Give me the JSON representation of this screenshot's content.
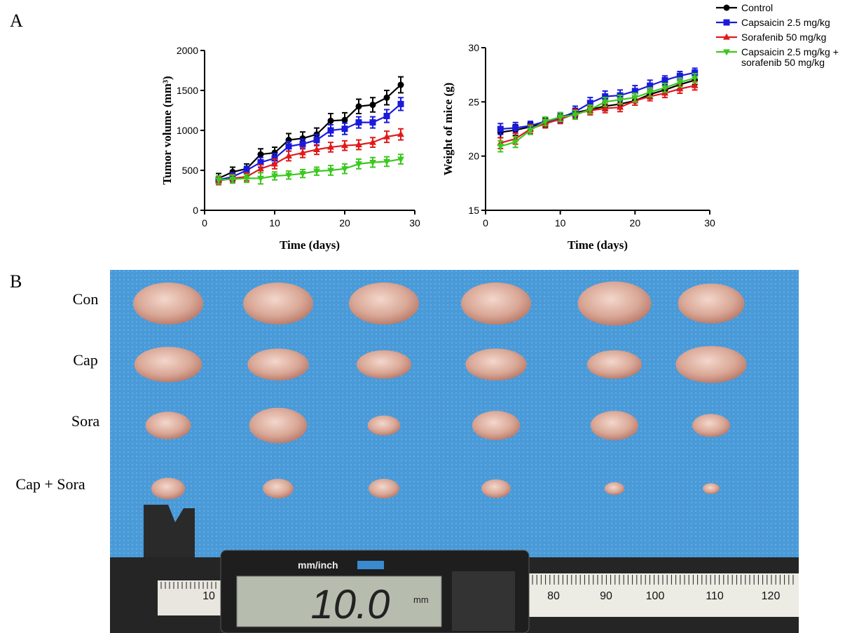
{
  "panels": {
    "a": "A",
    "b": "B"
  },
  "chart_data": [
    {
      "type": "line",
      "ylabel": "Tumor volume (mm³)",
      "xlabel": "Time (days)",
      "x": [
        2,
        4,
        6,
        8,
        10,
        12,
        14,
        16,
        18,
        20,
        22,
        24,
        26,
        28
      ],
      "xlim": [
        0,
        30
      ],
      "xticks": [
        0,
        10,
        20,
        30
      ],
      "ylim": [
        0,
        2000
      ],
      "yticks": [
        0,
        500,
        1000,
        1500,
        2000
      ],
      "series": [
        {
          "name": "Control",
          "color": "#000000",
          "marker": "circle",
          "values": [
            400,
            480,
            520,
            700,
            720,
            880,
            900,
            950,
            1120,
            1130,
            1300,
            1320,
            1410,
            1570
          ],
          "errors": [
            60,
            60,
            60,
            70,
            70,
            80,
            80,
            80,
            90,
            90,
            90,
            90,
            90,
            100
          ]
        },
        {
          "name": "Capsaicin 2.5 mg/kg",
          "color": "#1a1adc",
          "marker": "square",
          "values": [
            380,
            420,
            500,
            600,
            650,
            800,
            830,
            880,
            1000,
            1020,
            1100,
            1100,
            1180,
            1330
          ],
          "errors": [
            50,
            50,
            50,
            60,
            60,
            60,
            60,
            70,
            70,
            70,
            70,
            70,
            80,
            80
          ]
        },
        {
          "name": "Sorafenib 50 mg/kg",
          "color": "#e01a1a",
          "marker": "triangle-up",
          "values": [
            370,
            400,
            420,
            520,
            580,
            680,
            720,
            760,
            790,
            810,
            820,
            850,
            920,
            950
          ],
          "errors": [
            50,
            50,
            50,
            50,
            60,
            60,
            60,
            60,
            60,
            60,
            60,
            60,
            70,
            70
          ]
        },
        {
          "name": "Capsaicin 2.5 mg/kg + sorafenib 50 mg/kg",
          "color": "#3cc81e",
          "marker": "triangle-down",
          "values": [
            380,
            390,
            400,
            400,
            430,
            440,
            460,
            490,
            500,
            520,
            580,
            600,
            610,
            640
          ],
          "errors": [
            50,
            50,
            50,
            70,
            50,
            50,
            50,
            50,
            60,
            60,
            60,
            60,
            60,
            60
          ]
        }
      ]
    },
    {
      "type": "line",
      "ylabel": "Weight of mice (g)",
      "xlabel": "Time (days)",
      "x": [
        2,
        4,
        6,
        8,
        10,
        12,
        14,
        16,
        18,
        20,
        22,
        24,
        26,
        28
      ],
      "xlim": [
        0,
        30
      ],
      "xticks": [
        0,
        10,
        20,
        30
      ],
      "ylim": [
        15,
        30
      ],
      "yticks": [
        15,
        20,
        25,
        30
      ],
      "series": [
        {
          "color": "#000000",
          "marker": "circle",
          "values": [
            22.2,
            22.4,
            22.7,
            23.1,
            23.6,
            24.0,
            24.3,
            24.6,
            24.8,
            25.1,
            25.7,
            26.1,
            26.6,
            27.0
          ],
          "errors": [
            0.5,
            0.5,
            0.4,
            0.4,
            0.4,
            0.4,
            0.4,
            0.4,
            0.4,
            0.4,
            0.4,
            0.4,
            0.4,
            0.4
          ]
        },
        {
          "color": "#1a1adc",
          "marker": "square",
          "values": [
            22.5,
            22.6,
            22.8,
            23.2,
            23.5,
            24.1,
            24.9,
            25.5,
            25.6,
            26.0,
            26.5,
            27.0,
            27.4,
            27.7
          ],
          "errors": [
            0.5,
            0.5,
            0.4,
            0.4,
            0.4,
            0.5,
            0.5,
            0.5,
            0.5,
            0.5,
            0.5,
            0.4,
            0.4,
            0.4
          ]
        },
        {
          "color": "#e01a1a",
          "marker": "triangle-up",
          "values": [
            21.2,
            21.6,
            22.5,
            23.0,
            23.4,
            23.9,
            24.2,
            24.4,
            24.5,
            25.1,
            25.5,
            25.8,
            26.2,
            26.5
          ],
          "errors": [
            0.5,
            0.5,
            0.4,
            0.4,
            0.4,
            0.4,
            0.4,
            0.4,
            0.4,
            0.4,
            0.4,
            0.4,
            0.4,
            0.4
          ]
        },
        {
          "color": "#3cc81e",
          "marker": "triangle-down",
          "values": [
            20.9,
            21.3,
            22.4,
            23.2,
            23.6,
            23.8,
            24.3,
            25.0,
            25.2,
            25.4,
            25.9,
            26.3,
            26.8,
            27.2
          ],
          "errors": [
            0.5,
            0.5,
            0.4,
            0.4,
            0.4,
            0.4,
            0.4,
            0.4,
            0.4,
            0.4,
            0.4,
            0.4,
            0.4,
            0.4
          ]
        }
      ]
    }
  ],
  "photo": {
    "rows": [
      "Con",
      "Cap",
      "Sora",
      "Cap + Sora"
    ],
    "caliper": {
      "unit_switch": "mm/inch",
      "reading": "10.0",
      "unit": "mm",
      "scale": [
        "10",
        "80",
        "90",
        "100",
        "110",
        "120"
      ]
    }
  }
}
